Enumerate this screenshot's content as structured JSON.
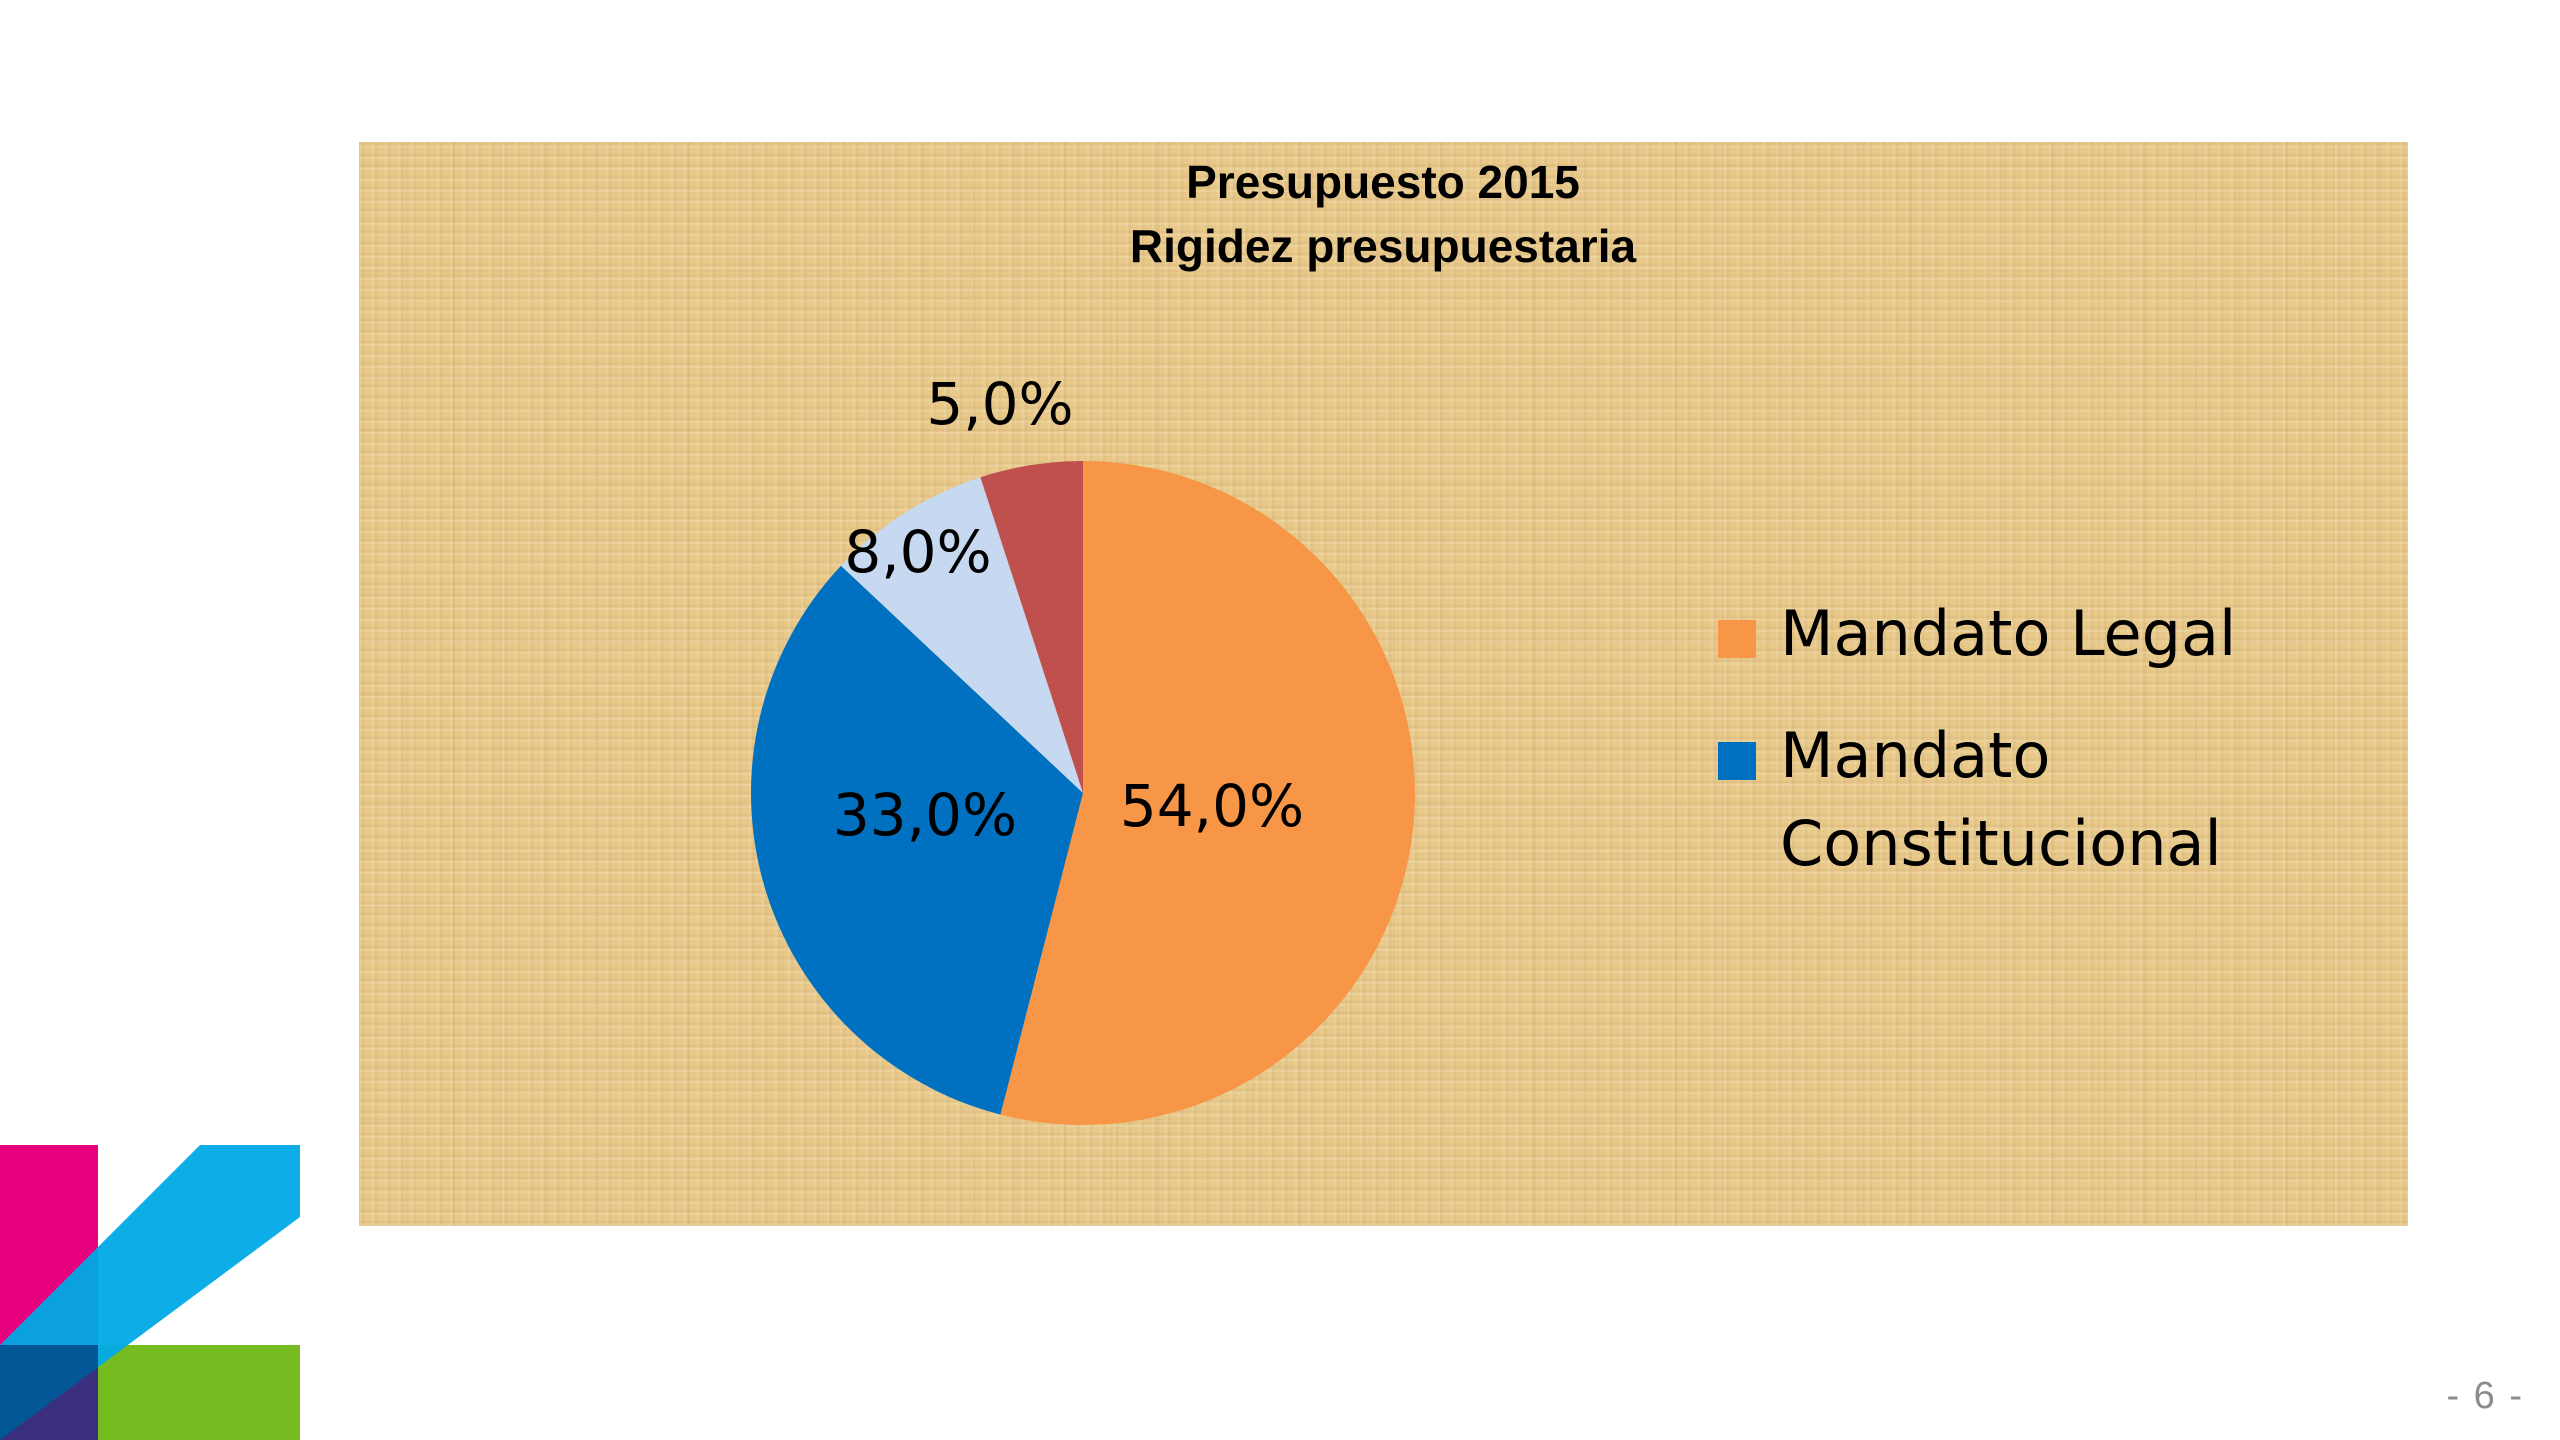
{
  "chart_data": {
    "type": "pie",
    "title_lines": [
      "Presupuesto 2015",
      "Rigidez presupuestaria"
    ],
    "slices": [
      {
        "name": "Mandato Legal",
        "value": 54.0,
        "label": "54,0%",
        "color": "#f79646"
      },
      {
        "name": "Mandato Constitucional",
        "value": 33.0,
        "label": "33,0%",
        "color": "#0070c0"
      },
      {
        "name": "",
        "value": 8.0,
        "label": "8,0%",
        "color": "#c6d9f1"
      },
      {
        "name": "",
        "value": 5.0,
        "label": "5,0%",
        "color": "#c0504d"
      }
    ],
    "start_angle_deg": 0,
    "direction": "clockwise",
    "legend": {
      "placement": "right",
      "entries": [
        {
          "label": "Mandato Legal",
          "color": "#f79646"
        },
        {
          "label": "Mandato Constitucional",
          "color": "#0070c0"
        }
      ]
    }
  },
  "page": {
    "number": "- 6 -"
  },
  "logo": {
    "colors": {
      "magenta": "#e6007e",
      "cyan": "#00a9e6",
      "green": "#76bc21",
      "navy": "#003f7f"
    }
  }
}
